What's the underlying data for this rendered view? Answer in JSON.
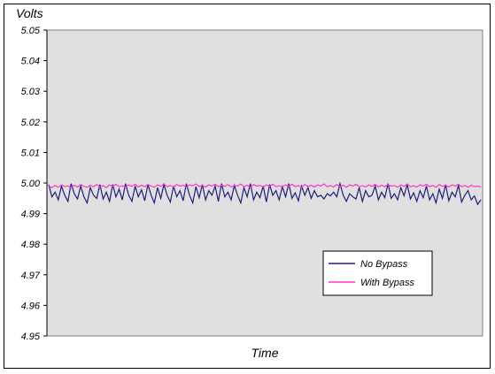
{
  "chart_data": {
    "type": "line",
    "title": "",
    "ylabel": "Volts",
    "xlabel": "Time",
    "ylim": [
      4.95,
      5.05
    ],
    "yticks": [
      "5.05",
      "5.04",
      "5.03",
      "5.02",
      "5.01",
      "5.00",
      "4.99",
      "4.98",
      "4.97",
      "4.96",
      "4.95"
    ],
    "ytick_values": [
      5.05,
      5.04,
      5.03,
      5.02,
      5.01,
      5.0,
      4.99,
      4.98,
      4.97,
      4.96,
      4.95
    ],
    "grid": false,
    "legend_position": "bottom-right",
    "plot_background": "#e0e0e0",
    "series": [
      {
        "name": "No Bypass",
        "color": "#1f1f7a",
        "values": [
          4.9995,
          4.9955,
          4.997,
          4.9945,
          4.999,
          4.996,
          4.994,
          4.9998,
          4.9965,
          4.9948,
          4.999,
          4.9955,
          4.9935,
          4.9985,
          4.996,
          4.995,
          4.9995,
          4.9948,
          4.997,
          4.994,
          4.9995,
          4.9955,
          4.998,
          4.9945,
          4.9998,
          4.996,
          4.994,
          4.999,
          4.9955,
          4.9978,
          4.9942,
          4.9995,
          4.996,
          4.9935,
          4.9985,
          4.995,
          4.9995,
          4.996,
          4.9938,
          4.999,
          4.9955,
          4.9975,
          4.9942,
          4.9998,
          4.996,
          4.9935,
          4.9988,
          4.9952,
          4.9995,
          4.9945,
          4.9975,
          4.996,
          4.999,
          4.994,
          4.9998,
          4.9955,
          4.997,
          4.9945,
          4.9992,
          4.996,
          4.9935,
          4.9985,
          4.9955,
          4.9998,
          4.9945,
          4.997,
          4.9952,
          4.999,
          4.9938,
          4.9995,
          4.996,
          4.9975,
          4.9945,
          4.9988,
          4.9955,
          4.9998,
          4.995,
          4.9968,
          4.9942,
          4.999,
          4.996,
          4.9985,
          4.995,
          4.9975,
          4.9955,
          4.996,
          4.9948,
          4.9965,
          4.9958,
          4.997,
          4.9955,
          4.9998,
          4.996,
          4.994,
          4.9965,
          4.9955,
          4.9948,
          4.9985,
          4.994,
          4.9975,
          4.9955,
          4.996,
          4.999,
          4.9945,
          4.997,
          4.9952,
          4.9998,
          4.995,
          4.9965,
          4.9945,
          4.9985,
          4.9958,
          4.9995,
          4.9948,
          4.9968,
          4.994,
          4.9975,
          4.9952,
          4.999,
          4.9945,
          4.9965,
          4.9935,
          4.998,
          4.995,
          4.9995,
          4.9942,
          4.997,
          4.9955,
          4.9993,
          4.9938,
          4.996,
          4.9975,
          4.9945,
          4.9958,
          4.993,
          4.9945
        ]
      },
      {
        "name": "With Bypass",
        "color": "#ff33cc",
        "values": [
          4.999,
          4.9985,
          4.9992,
          4.9986,
          4.9994,
          4.9988,
          4.9991,
          4.9984,
          4.9993,
          4.9987,
          4.9995,
          4.9989,
          4.9986,
          4.9993,
          4.9988,
          4.9995,
          4.9987,
          4.9992,
          4.9985,
          4.9994,
          4.9989,
          4.9996,
          4.9988,
          4.9991,
          4.9986,
          4.9994,
          4.9989,
          4.9996,
          4.9987,
          4.9993,
          4.9988,
          4.9995,
          4.999,
          4.9986,
          4.9994,
          4.9989,
          4.9997,
          4.9988,
          4.9992,
          4.9987,
          4.9995,
          4.999,
          4.9993,
          4.9986,
          4.9994,
          4.9991,
          4.9997,
          4.9989,
          4.9992,
          4.9987,
          4.9994,
          4.999,
          4.9996,
          4.9988,
          4.9993,
          4.9989,
          4.9995,
          4.9987,
          4.9992,
          4.999,
          4.9997,
          4.9988,
          4.9993,
          4.9986,
          4.9995,
          4.999,
          4.9992,
          4.9987,
          4.9994,
          4.9989,
          4.9996,
          4.9988,
          4.9991,
          4.9987,
          4.9994,
          4.999,
          4.9996,
          4.9988,
          4.9992,
          4.9986,
          4.9995,
          4.9989,
          4.9993,
          4.9987,
          4.9994,
          4.999,
          4.9997,
          4.9988,
          4.9992,
          4.9987,
          4.9995,
          4.9989,
          4.9993,
          4.9986,
          4.9994,
          4.999,
          4.9996,
          4.9988,
          4.9991,
          4.9987,
          4.9994,
          4.9989,
          4.9996,
          4.9987,
          4.9993,
          4.9988,
          4.9995,
          4.999,
          4.9992,
          4.9986,
          4.9994,
          4.9989,
          4.9997,
          4.9988,
          4.9991,
          4.9987,
          4.9994,
          4.999,
          4.9996,
          4.9988,
          4.9992,
          4.9986,
          4.9995,
          4.9989,
          4.9993,
          4.9987,
          4.9994,
          4.999,
          4.9996,
          4.9988,
          4.9992,
          4.9986,
          4.9993,
          4.9988,
          4.999,
          4.9987
        ]
      }
    ]
  }
}
